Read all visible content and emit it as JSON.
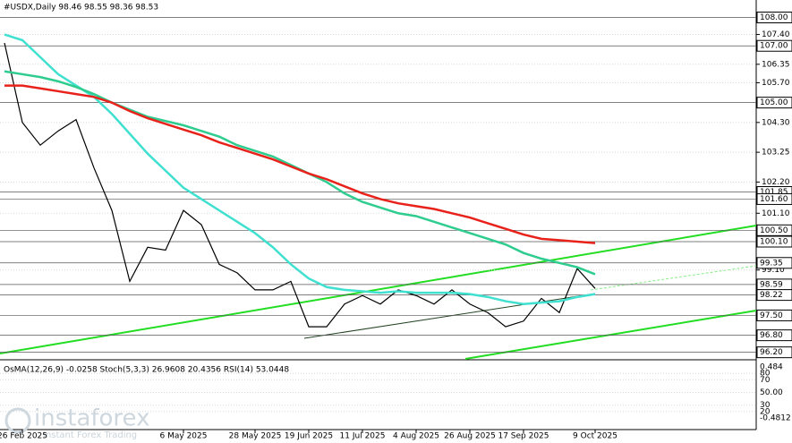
{
  "chart_data": {
    "type": "line",
    "title": "#USDX,Daily  98.46 98.55 98.36 98.53",
    "categories": [
      null,
      "26 Feb 2025",
      null,
      null,
      null,
      null,
      null,
      null,
      null,
      null,
      "6 May 2025",
      null,
      null,
      null,
      "28 May 2025",
      null,
      null,
      "19 Jun 2025",
      null,
      null,
      "11 Jul 2025",
      null,
      null,
      "4 Aug 2025",
      null,
      null,
      "26 Aug 2025",
      null,
      null,
      "17 Sep 2025",
      null,
      null,
      null,
      "9 Oct 2025"
    ],
    "series": [
      {
        "color": "#000000",
        "values": [
          107.1,
          104.3,
          103.5,
          104.0,
          104.4,
          102.7,
          101.2,
          98.7,
          99.9,
          99.8,
          101.2,
          100.7,
          99.3,
          99.0,
          98.4,
          98.4,
          98.7,
          97.1,
          97.1,
          97.9,
          98.2,
          97.9,
          98.4,
          98.2,
          97.9,
          98.4,
          97.9,
          97.6,
          97.1,
          97.3,
          98.1,
          97.6,
          99.15,
          98.45
        ]
      },
      {
        "color": "#40e0d0",
        "values": [
          107.4,
          107.2,
          106.6,
          106.0,
          105.6,
          105.2,
          104.6,
          103.9,
          103.2,
          102.6,
          102.0,
          101.6,
          101.2,
          100.8,
          100.4,
          99.9,
          99.3,
          98.8,
          98.5,
          98.4,
          98.35,
          98.3,
          98.35,
          98.3,
          98.3,
          98.3,
          98.25,
          98.15,
          98.0,
          97.9,
          97.95,
          98.0,
          98.15,
          98.25
        ]
      },
      {
        "color": "#2ecc8f",
        "values": [
          106.1,
          106.0,
          105.9,
          105.75,
          105.55,
          105.3,
          105.0,
          104.75,
          104.5,
          104.35,
          104.2,
          104.0,
          103.8,
          103.5,
          103.3,
          103.1,
          102.8,
          102.5,
          102.2,
          101.8,
          101.5,
          101.3,
          101.1,
          101.0,
          100.8,
          100.6,
          100.4,
          100.2,
          100.0,
          99.7,
          99.5,
          99.35,
          99.2,
          98.95
        ]
      },
      {
        "color": "#e8221a",
        "values": [
          105.6,
          105.6,
          105.5,
          105.4,
          105.3,
          105.2,
          105.0,
          104.7,
          104.45,
          104.25,
          104.05,
          103.85,
          103.6,
          103.4,
          103.2,
          103.0,
          102.75,
          102.5,
          102.3,
          102.05,
          101.8,
          101.6,
          101.45,
          101.35,
          101.25,
          101.1,
          100.95,
          100.75,
          100.55,
          100.35,
          100.2,
          100.15,
          100.1,
          100.05
        ]
      }
    ],
    "ylim": [
      96.0,
      108.3
    ],
    "yticks": [
      {
        "value": 107.4,
        "label": "107.40"
      },
      {
        "value": 106.35,
        "label": "106.35"
      },
      {
        "value": 105.7,
        "label": "105.70"
      },
      {
        "value": 104.3,
        "label": "104.30"
      },
      {
        "value": 103.25,
        "label": "103.25"
      },
      {
        "value": 102.2,
        "label": "102.20"
      },
      {
        "value": 101.1,
        "label": "101.10"
      },
      {
        "value": 99.1,
        "label": "99.10"
      }
    ],
    "levels": [
      {
        "value": 108,
        "label": "108.00"
      },
      {
        "value": 107,
        "label": "107.00"
      },
      {
        "value": 105,
        "label": "105.00"
      },
      {
        "value": 101.85,
        "label": "101.85"
      },
      {
        "value": 101.6,
        "label": "101.60"
      },
      {
        "value": 100.5,
        "label": "100.50"
      },
      {
        "value": 100.1,
        "label": "100.10"
      },
      {
        "value": 99.35,
        "label": "99.35"
      },
      {
        "value": 98.59,
        "label": "98.59"
      },
      {
        "value": 98.22,
        "label": "98.22"
      },
      {
        "value": 97.5,
        "label": "97.50"
      },
      {
        "value": 96.8,
        "label": "96.80"
      },
      {
        "value": 96.2,
        "label": "96.20"
      }
    ],
    "indicator": {
      "legend": "OsMA(12,26,9) -0.0258  Stoch(5,3,3) 26.9608 20.4356  RSI(14) 53.0448",
      "top": "0.484",
      "bottom": "-0.4812",
      "ylim": [
        0,
        100
      ],
      "yticks": [
        80,
        70,
        {
          "value": 50,
          "label": "50.00"
        },
        30,
        20
      ]
    },
    "watermark": {
      "name": "instaforex",
      "tagline": "Instant Forex Trading"
    }
  }
}
